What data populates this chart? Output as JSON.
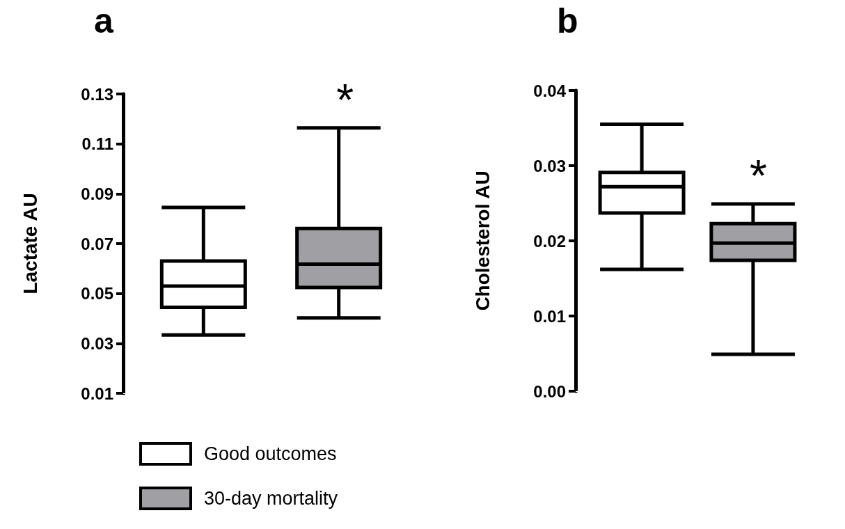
{
  "chart_data": [
    {
      "type": "box",
      "title": "a",
      "ylabel": "Lactate AU",
      "categories": [
        null
      ],
      "ylim": [
        0.01,
        0.13
      ],
      "yticks": [
        0.01,
        0.03,
        0.05,
        0.07,
        0.09,
        0.11,
        0.13
      ],
      "grid": false,
      "legend": "bottom",
      "annotations": [
        "*"
      ],
      "series": [
        {
          "name": "Good outcomes",
          "color": "#ffffff",
          "boxes": [
            {
              "low": 0.0334,
              "q1": 0.0445,
              "median": 0.053,
              "q3": 0.063,
              "high": 0.0845
            }
          ]
        },
        {
          "name": "30-day mortality",
          "color": "#a0a0a4",
          "boxes": [
            {
              "low": 0.0402,
              "q1": 0.0524,
              "median": 0.0618,
              "q3": 0.0761,
              "high": 0.1164
            }
          ]
        }
      ]
    },
    {
      "type": "box",
      "title": "b",
      "ylabel": "Cholesterol AU",
      "categories": [
        null
      ],
      "ylim": [
        0,
        0.04
      ],
      "yticks": [
        {
          "value": 0,
          "label": "0.00"
        },
        0.01,
        0.02,
        0.03,
        0.04
      ],
      "grid": false,
      "annotations": [
        "*"
      ],
      "series": [
        {
          "color": "#ffffff",
          "boxes": [
            {
              "low": 0.0162,
              "q1": 0.0237,
              "median": 0.0272,
              "q3": 0.0291,
              "high": 0.0355
            }
          ]
        },
        {
          "color": "#a0a0a4",
          "boxes": [
            {
              "low": 0.0049,
              "q1": 0.0174,
              "median": 0.0197,
              "q3": 0.0223,
              "high": 0.0249
            }
          ]
        }
      ]
    }
  ]
}
